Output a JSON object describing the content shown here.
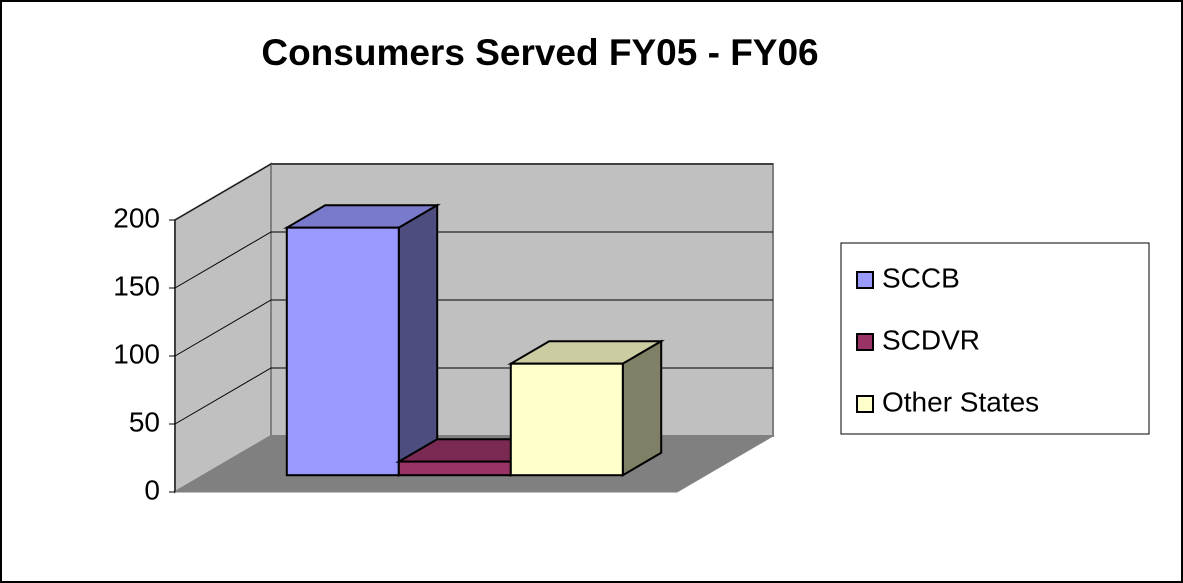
{
  "chart_data": {
    "type": "bar3d",
    "title": "Consumers Served FY05 - FY06",
    "categories": [
      null
    ],
    "series": [
      {
        "name": "SCCB",
        "color": "#9999ff",
        "values": [
          182
        ]
      },
      {
        "name": "SCDVR",
        "color": "#993366",
        "values": [
          10
        ]
      },
      {
        "name": "Other States",
        "color": "#ffffcc",
        "values": [
          82
        ]
      }
    ],
    "ylim": [
      0,
      200
    ],
    "yticks": [
      0,
      50,
      100,
      150,
      200
    ],
    "grid": true,
    "legend": "right"
  }
}
